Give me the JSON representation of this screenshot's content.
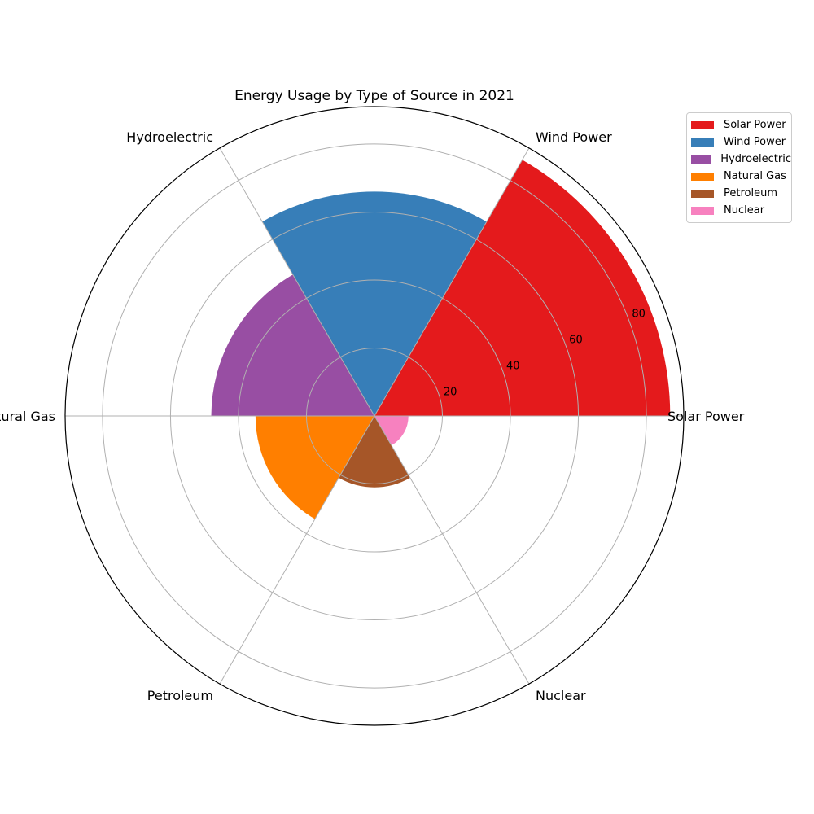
{
  "chart_data": {
    "type": "polar-bar",
    "title": "Energy Usage by Type of Source in 2021",
    "categories": [
      "Solar Power",
      "Wind Power",
      "Hydroelectric",
      "Natural Gas",
      "Petroleum",
      "Nuclear"
    ],
    "values": [
      87,
      66,
      48,
      35,
      21,
      10
    ],
    "colors": [
      "#e41a1c",
      "#377eb8",
      "#984ea3",
      "#ff7f00",
      "#a65628",
      "#f781bf"
    ],
    "radial_ticks": [
      20,
      40,
      60,
      80
    ],
    "rlim": [
      0,
      91
    ],
    "grid": true,
    "legend": {
      "position": "top-right",
      "entries": [
        "Solar Power",
        "Wind Power",
        "Hydroelectric",
        "Natural Gas",
        "Petroleum",
        "Nuclear"
      ]
    }
  }
}
